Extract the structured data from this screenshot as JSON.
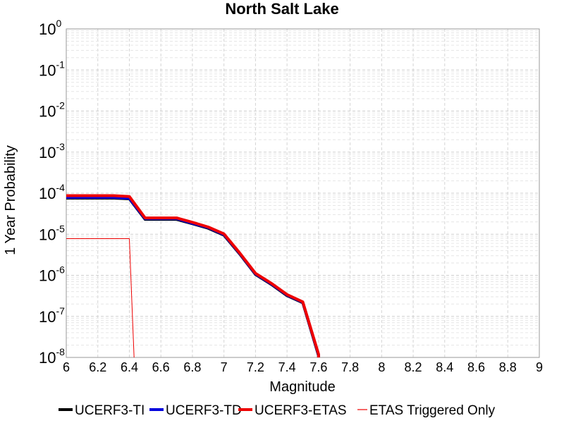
{
  "chart_data": {
    "type": "line",
    "title": "North Salt Lake",
    "xlabel": "Magnitude",
    "ylabel": "1 Year Probability",
    "xlim": [
      6,
      9
    ],
    "ylim": [
      7e-09,
      1
    ],
    "y_scale": "log",
    "grid": true,
    "legend_position": "bottom",
    "x_ticks": [
      "6",
      "6.2",
      "6.4",
      "6.6",
      "6.8",
      "7",
      "7.2",
      "7.4",
      "7.6",
      "7.8",
      "8",
      "8.2",
      "8.4",
      "8.6",
      "8.8",
      "9"
    ],
    "y_ticks": [
      {
        "base": "10",
        "exp": "0"
      },
      {
        "base": "10",
        "exp": "-1"
      },
      {
        "base": "10",
        "exp": "-2"
      },
      {
        "base": "10",
        "exp": "-3"
      },
      {
        "base": "10",
        "exp": "-4"
      },
      {
        "base": "10",
        "exp": "-5"
      },
      {
        "base": "10",
        "exp": "-6"
      },
      {
        "base": "10",
        "exp": "-7"
      },
      {
        "base": "10",
        "exp": "-8"
      }
    ],
    "series": [
      {
        "name": "UCERF3-TI",
        "color": "#000000",
        "width": 4,
        "x": [
          6.0,
          6.1,
          6.2,
          6.3,
          6.4,
          6.5,
          6.6,
          6.7,
          6.8,
          6.9,
          7.0,
          7.1,
          7.2,
          7.3,
          7.4,
          7.5,
          7.6,
          7.6
        ],
        "y": [
          7.6e-05,
          7.6e-05,
          7.6e-05,
          7.6e-05,
          7.3e-05,
          2.3e-05,
          2.3e-05,
          2.3e-05,
          1.8e-05,
          1.4e-05,
          9.5e-06,
          3.3e-06,
          1.05e-06,
          6e-07,
          3.2e-07,
          2.15e-07,
          1.1e-08,
          7e-09
        ]
      },
      {
        "name": "UCERF3-TD",
        "color": "#0000dd",
        "width": 4,
        "x": [
          6.0,
          6.1,
          6.2,
          6.3,
          6.4,
          6.5,
          6.6,
          6.7,
          6.8,
          6.9,
          7.0,
          7.1,
          7.2,
          7.3,
          7.4,
          7.5,
          7.6,
          7.6
        ],
        "y": [
          7.9e-05,
          7.9e-05,
          7.9e-05,
          7.9e-05,
          7.5e-05,
          2.4e-05,
          2.4e-05,
          2.4e-05,
          1.85e-05,
          1.45e-05,
          9.8e-06,
          3.4e-06,
          1.08e-06,
          6.2e-07,
          3.3e-07,
          2.2e-07,
          1.15e-08,
          7e-09
        ]
      },
      {
        "name": "UCERF3-ETAS",
        "color": "#ee0000",
        "width": 4,
        "x": [
          6.0,
          6.1,
          6.2,
          6.3,
          6.4,
          6.5,
          6.6,
          6.7,
          6.8,
          6.9,
          7.0,
          7.1,
          7.2,
          7.3,
          7.4,
          7.5,
          7.6,
          7.6
        ],
        "y": [
          8.7e-05,
          8.7e-05,
          8.7e-05,
          8.7e-05,
          8.3e-05,
          2.5e-05,
          2.5e-05,
          2.5e-05,
          1.95e-05,
          1.5e-05,
          1.02e-05,
          3.5e-06,
          1.12e-06,
          6.4e-07,
          3.4e-07,
          2.25e-07,
          1.2e-08,
          7e-09
        ]
      },
      {
        "name": "ETAS Triggered Only",
        "color": "#ee0000",
        "width": 1,
        "x": [
          6.0,
          6.1,
          6.2,
          6.3,
          6.4,
          6.43
        ],
        "y": [
          7.8e-06,
          7.8e-06,
          7.8e-06,
          7.8e-06,
          7.8e-06,
          7e-09
        ]
      }
    ]
  }
}
